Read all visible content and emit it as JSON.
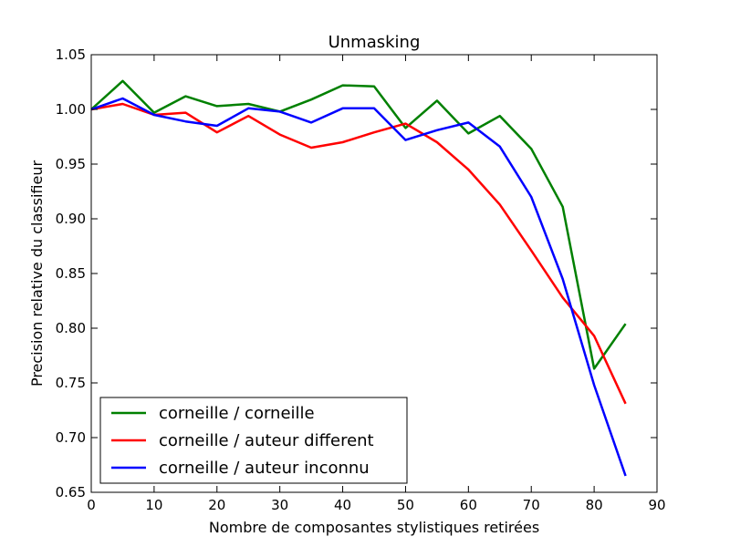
{
  "chart_data": {
    "type": "line",
    "title": "Unmasking",
    "xlabel": "Nombre de composantes stylistiques retirées",
    "ylabel": "Precision relative du classifieur",
    "xlim": [
      0,
      90
    ],
    "ylim": [
      0.65,
      1.05
    ],
    "xticks": [
      0,
      10,
      20,
      30,
      40,
      50,
      60,
      70,
      80,
      90
    ],
    "yticks": [
      0.65,
      0.7,
      0.75,
      0.8,
      0.85,
      0.9,
      0.95,
      1.0,
      1.05
    ],
    "xtick_labels": [
      "0",
      "10",
      "20",
      "30",
      "40",
      "50",
      "60",
      "70",
      "80",
      "90"
    ],
    "ytick_labels": [
      "0.65",
      "0.70",
      "0.75",
      "0.80",
      "0.85",
      "0.90",
      "0.95",
      "1.00",
      "1.05"
    ],
    "legend_position": "lower-left",
    "grid": false,
    "x": [
      0,
      5,
      10,
      15,
      20,
      25,
      30,
      35,
      40,
      45,
      50,
      55,
      60,
      65,
      70,
      75,
      80,
      85
    ],
    "series": [
      {
        "name": "corneille / corneille",
        "color": "#008000",
        "values": [
          1.0,
          1.026,
          0.997,
          1.012,
          1.003,
          1.005,
          0.998,
          1.009,
          1.022,
          1.021,
          0.983,
          1.008,
          0.978,
          0.994,
          0.964,
          0.911,
          0.763,
          0.804
        ]
      },
      {
        "name": "corneille / auteur different",
        "color": "#ff0000",
        "values": [
          1.0,
          1.005,
          0.995,
          0.997,
          0.979,
          0.994,
          0.977,
          0.965,
          0.97,
          0.979,
          0.987,
          0.97,
          0.945,
          0.913,
          0.871,
          0.828,
          0.793,
          0.731
        ]
      },
      {
        "name": "corneille / auteur inconnu",
        "color": "#0000ff",
        "values": [
          1.0,
          1.01,
          0.995,
          0.989,
          0.985,
          1.001,
          0.998,
          0.988,
          1.001,
          1.001,
          0.972,
          0.981,
          0.988,
          0.966,
          0.92,
          0.845,
          0.748,
          0.665
        ]
      }
    ]
  }
}
